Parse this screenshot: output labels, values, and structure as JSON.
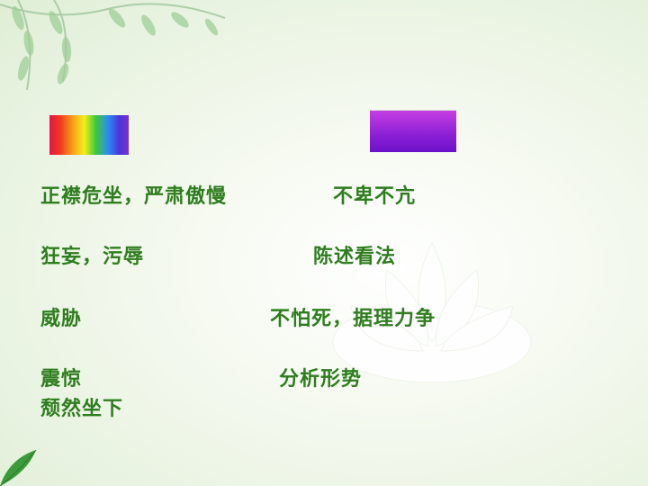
{
  "swatches": {
    "rainbow": {
      "colors": [
        "#e6144a",
        "#f23a1c",
        "#f7a21a",
        "#f4ee1c",
        "#3fca39",
        "#2a8cf2",
        "#4a35d8",
        "#7b2fd0"
      ]
    },
    "purple": {
      "colors": [
        "#c43ee2",
        "#8c1fd6",
        "#6a12c8"
      ]
    }
  },
  "text_color": "#2e7d1e",
  "rows": [
    {
      "left": "正襟危坐，严肃傲慢",
      "right": "不卑不亢"
    },
    {
      "left": "狂妄，污辱",
      "right": "陈述看法"
    },
    {
      "left": "威胁",
      "right": "不怕死，据理力争"
    },
    {
      "left": "震惊",
      "right": "分析形势"
    }
  ],
  "extra_line": "颓然坐下",
  "decor": {
    "top_left": "willow-branches",
    "bottom_left": "leaf",
    "center": "lotus-flower"
  }
}
